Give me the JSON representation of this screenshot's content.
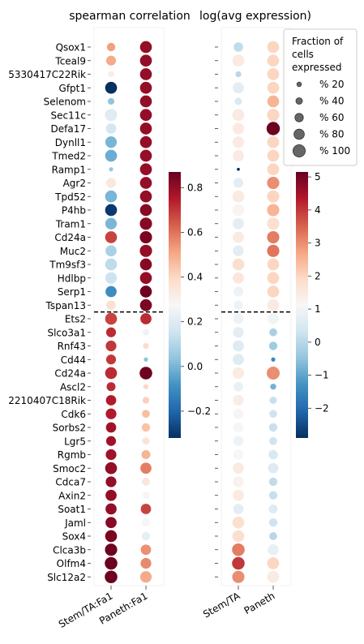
{
  "chart_data": {
    "type": "scatter",
    "genes": [
      "Qsox1",
      "Tceal9",
      "5330417C22Rik",
      "Gfpt1",
      "Selenom",
      "Sec11c",
      "Defa17",
      "Dynll1",
      "Tmed2",
      "Ramp1",
      "Agr2",
      "Tpd52",
      "P4hb",
      "Tram1",
      "Cd24a",
      "Muc2",
      "Tm9sf3",
      "Hdlbp",
      "Serp1",
      "Tspan13",
      "Ets2",
      "Slco3a1",
      "Rnf43",
      "Cd44",
      "Cd24a",
      "Ascl2",
      "2210407C18Rik",
      "Cdk6",
      "Sorbs2",
      "Lgr5",
      "Rgmb",
      "Smoc2",
      "Cdca7",
      "Axin2",
      "Soat1",
      "Jaml",
      "Sox4",
      "Clca3b",
      "Olfm4",
      "Slc12a2"
    ],
    "panels": [
      {
        "title": "spearman correlation",
        "columns": [
          "Stem/TA:Fa1",
          "Paneth:Fa1"
        ],
        "colorbar": {
          "min": -0.32,
          "max": 0.87,
          "ticks": [
            -0.2,
            0.0,
            0.2,
            0.4,
            0.6,
            0.8
          ],
          "tick_labels": [
            "−0.2",
            "0.0",
            "0.2",
            "0.4",
            "0.6",
            "0.8"
          ],
          "cmap": "RdBu_r"
        },
        "color": [
          [
            0.52,
            0.8
          ],
          [
            0.5,
            0.8
          ],
          [
            0.32,
            0.8
          ],
          [
            -0.32,
            0.8
          ],
          [
            0.04,
            0.8
          ],
          [
            0.2,
            0.8
          ],
          [
            0.17,
            0.8
          ],
          [
            0.0,
            0.8
          ],
          [
            -0.02,
            0.8
          ],
          [
            0.05,
            0.8
          ],
          [
            0.34,
            0.8
          ],
          [
            0.0,
            0.8
          ],
          [
            -0.3,
            0.82
          ],
          [
            0.0,
            0.82
          ],
          [
            0.68,
            0.84
          ],
          [
            0.08,
            0.8
          ],
          [
            0.12,
            0.82
          ],
          [
            0.15,
            0.8
          ],
          [
            -0.1,
            0.86
          ],
          [
            0.37,
            0.84
          ],
          [
            0.68,
            0.72
          ],
          [
            0.72,
            0.25
          ],
          [
            0.7,
            0.38
          ],
          [
            0.7,
            0.03
          ],
          [
            0.72,
            0.86
          ],
          [
            0.72,
            0.4
          ],
          [
            0.75,
            0.42
          ],
          [
            0.75,
            0.46
          ],
          [
            0.78,
            0.45
          ],
          [
            0.78,
            0.36
          ],
          [
            0.78,
            0.48
          ],
          [
            0.8,
            0.58
          ],
          [
            0.8,
            0.35
          ],
          [
            0.8,
            0.28
          ],
          [
            0.8,
            0.68
          ],
          [
            0.82,
            0.27
          ],
          [
            0.84,
            0.22
          ],
          [
            0.86,
            0.55
          ],
          [
            0.86,
            0.56
          ],
          [
            0.86,
            0.5
          ]
        ],
        "fraction": [
          [
            40,
            80
          ],
          [
            55,
            80
          ],
          [
            20,
            80
          ],
          [
            80,
            80
          ],
          [
            25,
            80
          ],
          [
            85,
            80
          ],
          [
            60,
            80
          ],
          [
            75,
            80
          ],
          [
            80,
            80
          ],
          [
            10,
            80
          ],
          [
            55,
            80
          ],
          [
            80,
            80
          ],
          [
            80,
            80
          ],
          [
            75,
            85
          ],
          [
            80,
            85
          ],
          [
            70,
            85
          ],
          [
            80,
            80
          ],
          [
            75,
            80
          ],
          [
            70,
            80
          ],
          [
            50,
            80
          ],
          [
            80,
            70
          ],
          [
            55,
            25
          ],
          [
            65,
            20
          ],
          [
            55,
            10
          ],
          [
            80,
            90
          ],
          [
            45,
            15
          ],
          [
            60,
            25
          ],
          [
            65,
            35
          ],
          [
            60,
            40
          ],
          [
            55,
            30
          ],
          [
            65,
            45
          ],
          [
            80,
            70
          ],
          [
            65,
            35
          ],
          [
            70,
            30
          ],
          [
            70,
            60
          ],
          [
            70,
            40
          ],
          [
            80,
            40
          ],
          [
            85,
            60
          ],
          [
            90,
            65
          ],
          [
            90,
            75
          ]
        ]
      },
      {
        "title": "log(avg expression)",
        "columns": [
          "Stem/TA",
          "Paneth"
        ],
        "colorbar": {
          "min": -2.9,
          "max": 5.15,
          "ticks": [
            -2,
            -1,
            0,
            1,
            2,
            3,
            4,
            5
          ],
          "tick_labels": [
            "−2",
            "−1",
            "0",
            "1",
            "2",
            "3",
            "4",
            "5"
          ],
          "cmap": "RdBu_r"
        },
        "color": [
          [
            0.1,
            2.0
          ],
          [
            1.5,
            2.0
          ],
          [
            0.0,
            2.0
          ],
          [
            0.7,
            2.0
          ],
          [
            0.5,
            2.5
          ],
          [
            1.5,
            2.0
          ],
          [
            1.5,
            5.1
          ],
          [
            1.5,
            2.0
          ],
          [
            1.5,
            2.0
          ],
          [
            -2.9,
            2.0
          ],
          [
            0.7,
            3.0
          ],
          [
            1.5,
            2.0
          ],
          [
            1.2,
            2.5
          ],
          [
            0.7,
            1.8
          ],
          [
            1.5,
            3.2
          ],
          [
            0.7,
            3.3
          ],
          [
            1.8,
            2.0
          ],
          [
            1.6,
            2.0
          ],
          [
            0.9,
            2.0
          ],
          [
            0.9,
            1.5
          ],
          [
            0.9,
            1.0
          ],
          [
            0.7,
            -0.2
          ],
          [
            0.6,
            -0.3
          ],
          [
            0.6,
            -1.5
          ],
          [
            1.5,
            3.0
          ],
          [
            0.8,
            -0.8
          ],
          [
            1.4,
            0.2
          ],
          [
            1.2,
            0.3
          ],
          [
            1.1,
            0.2
          ],
          [
            0.9,
            0.3
          ],
          [
            1.1,
            0.5
          ],
          [
            1.5,
            0.6
          ],
          [
            1.3,
            0.1
          ],
          [
            1.5,
            0.2
          ],
          [
            0.7,
            0.6
          ],
          [
            1.8,
            0.3
          ],
          [
            1.8,
            0.0
          ],
          [
            3.2,
            0.8
          ],
          [
            4.0,
            2.0
          ],
          [
            3.0,
            1.5
          ]
        ],
        "fraction": [
          [
            50,
            80
          ],
          [
            80,
            80
          ],
          [
            20,
            80
          ],
          [
            70,
            80
          ],
          [
            30,
            80
          ],
          [
            80,
            85
          ],
          [
            75,
            100
          ],
          [
            75,
            80
          ],
          [
            70,
            80
          ],
          [
            5,
            80
          ],
          [
            55,
            85
          ],
          [
            80,
            85
          ],
          [
            80,
            85
          ],
          [
            70,
            85
          ],
          [
            70,
            85
          ],
          [
            65,
            85
          ],
          [
            80,
            80
          ],
          [
            70,
            80
          ],
          [
            55,
            80
          ],
          [
            45,
            80
          ],
          [
            60,
            70
          ],
          [
            65,
            35
          ],
          [
            70,
            40
          ],
          [
            70,
            10
          ],
          [
            75,
            95
          ],
          [
            50,
            20
          ],
          [
            65,
            30
          ],
          [
            60,
            35
          ],
          [
            60,
            40
          ],
          [
            55,
            35
          ],
          [
            60,
            50
          ],
          [
            70,
            60
          ],
          [
            65,
            40
          ],
          [
            70,
            40
          ],
          [
            60,
            45
          ],
          [
            80,
            40
          ],
          [
            80,
            35
          ],
          [
            90,
            70
          ],
          [
            90,
            80
          ],
          [
            85,
            80
          ]
        ]
      }
    ],
    "split_after_index": 19,
    "legend": {
      "title_lines": [
        "Fraction of",
        "cells",
        "expressed"
      ],
      "entries": [
        {
          "label": "% 20",
          "fraction": 20
        },
        {
          "label": "% 40",
          "fraction": 40
        },
        {
          "label": "% 60",
          "fraction": 60
        },
        {
          "label": "% 80",
          "fraction": 80
        },
        {
          "label": "% 100",
          "fraction": 100
        }
      ],
      "position": "top-right"
    }
  }
}
